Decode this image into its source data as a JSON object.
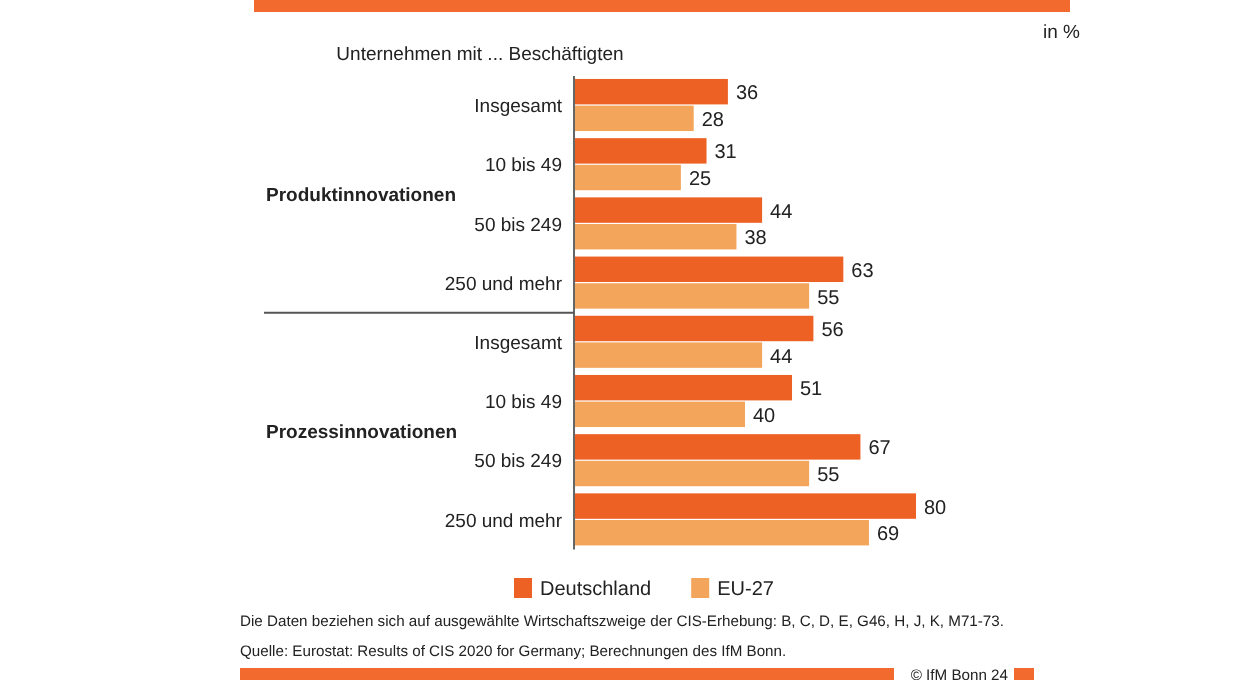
{
  "chart_data": {
    "type": "bar",
    "orientation": "horizontal",
    "subtitle": "Unternehmen  mit ... Beschäftigten",
    "categories": [
      "Insgesamt",
      "10 bis 49",
      "50 bis 249",
      "250 und mehr",
      "Insgesamt",
      "10 bis 49",
      "50 bis 249",
      "250 und mehr"
    ],
    "series": [
      {
        "name": "Deutschland",
        "color": "#ee6125",
        "values": [
          36,
          31,
          44,
          63,
          56,
          51,
          67,
          80
        ]
      },
      {
        "name": "EU-27",
        "color": "#f4a55c",
        "values": [
          28,
          25,
          38,
          55,
          44,
          40,
          55,
          69
        ]
      }
    ],
    "data_labels": true,
    "legend": "bottom",
    "annotations": [
      "in %",
      "Produktinnovationen",
      "Prozessinnovationen",
      "Die Daten beziehen sich auf ausgewählte Wirtschaftszweige der CIS-Erhebung:  B, C, D, E, G46, H, J, K, M71-73.",
      "Quelle:  Eurostat: Results of CIS 2020 for Germany;  Berechnungen  des IfM Bonn.",
      "© IfM Bonn 24"
    ]
  }
}
